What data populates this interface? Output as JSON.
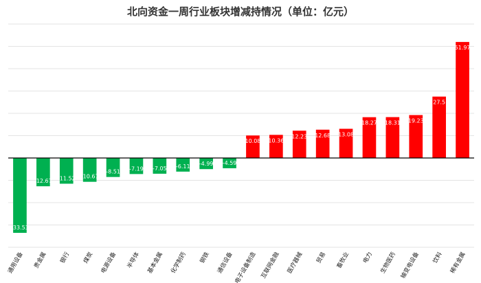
{
  "chart_data": {
    "type": "bar",
    "title": "北向资金一周行业板块增减持情况（单位：亿元）",
    "categories": [
      "通用设备",
      "贵金属",
      "银行",
      "煤炭",
      "电源设备",
      "半导体",
      "基本金属",
      "化学制药",
      "钢铁",
      "通信设备",
      "电子设备制造",
      "互联网金融",
      "医疗器械",
      "贸易",
      "畜牧业",
      "电力",
      "生物医药",
      "输变电设备",
      "饮料",
      "稀有金属"
    ],
    "values": [
      -33.53,
      -12.67,
      -11.52,
      -10.67,
      -8.51,
      -7.19,
      -7.05,
      -6.11,
      -4.99,
      -4.59,
      10.08,
      10.36,
      12.23,
      12.68,
      13.08,
      18.27,
      18.31,
      19.23,
      27.5,
      51.97
    ],
    "labels": [
      "-33.53",
      "-12.67",
      "-11.52",
      "-10.67",
      "-8.51",
      "-7.19",
      "-7.05",
      "-6.11",
      "-4.99",
      "-4.59",
      "10.08",
      "10.36",
      "12.23",
      "12.68",
      "13.08",
      "18.27",
      "18.31",
      "19.23",
      "27.5",
      "51.97"
    ],
    "ylim": [
      -40,
      60
    ],
    "grid": true,
    "legend": "none",
    "colors": {
      "positive": "#ff0000",
      "negative": "#00b050"
    }
  }
}
